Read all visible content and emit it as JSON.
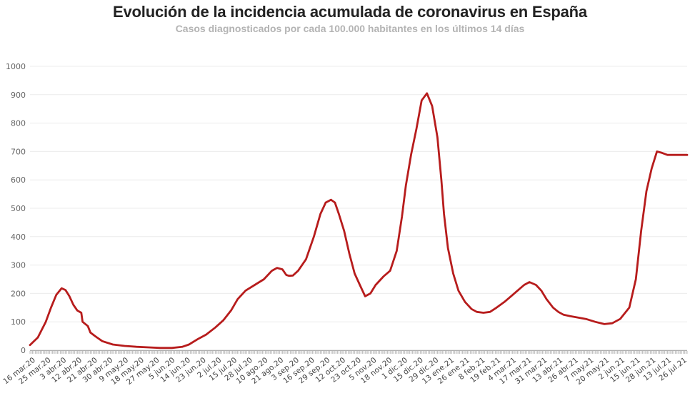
{
  "chart_data": {
    "type": "line",
    "title": "Evolución de la incidencia acumulada de coronavirus en España",
    "subtitle": "Casos diagnosticados por cada 100.000 habitantes en los últimos 14 días",
    "xlabel": "",
    "ylabel": "",
    "ylim": [
      0,
      1000
    ],
    "yticks": [
      "0",
      "100",
      "200",
      "300",
      "400",
      "500",
      "600",
      "700",
      "800",
      "900",
      "1000"
    ],
    "grid": true,
    "legend": "none",
    "line_color": "#b71c1c",
    "x_tick_labels": [
      "16 mar.20",
      "25 mar.20",
      "3 abr.20",
      "12 abr.20",
      "21 abr.20",
      "30 abr.20",
      "9 may.20",
      "18 may.20",
      "27 may.20",
      "5 jun.20",
      "14 jun.20",
      "23 jun.20",
      "2 jul.20",
      "15 jul.20",
      "28 jul.20",
      "10 ago.20",
      "21 ago.20",
      "3 sep.20",
      "16 sep.20",
      "29 sep.20",
      "12 oct.20",
      "23 oct.20",
      "5 nov.20",
      "18 nov.20",
      "1 dic.20",
      "15 dic.20",
      "29 dic.20",
      "13 ene.21",
      "26 ene.21",
      "8 feb.21",
      "19 feb.21",
      "4 mar.21",
      "17 mar.21",
      "31 mar.21",
      "13 abr.21",
      "26 abr.21",
      "7 may.21",
      "20 may.21",
      "2 jun.21",
      "15 jun.21",
      "28 jun.21",
      "13 jul.21",
      "26 jul.21"
    ],
    "series": [
      {
        "x": [
          "2020-03-16",
          "2020-03-22",
          "2020-03-28",
          "2020-04-01",
          "2020-04-05",
          "2020-04-09",
          "2020-04-12",
          "2020-04-15",
          "2020-04-18",
          "2020-04-21",
          "2020-04-24",
          "2020-04-25",
          "2020-04-29",
          "2020-05-01",
          "2020-05-05",
          "2020-05-10",
          "2020-05-18",
          "2020-05-27",
          "2020-06-05",
          "2020-06-14",
          "2020-06-23",
          "2020-07-02",
          "2020-07-10",
          "2020-07-15",
          "2020-07-22",
          "2020-07-28",
          "2020-08-04",
          "2020-08-10",
          "2020-08-16",
          "2020-08-21",
          "2020-08-27",
          "2020-09-03",
          "2020-09-10",
          "2020-09-16",
          "2020-09-20",
          "2020-09-24",
          "2020-09-27",
          "2020-09-29",
          "2020-10-02",
          "2020-10-06",
          "2020-10-12",
          "2020-10-18",
          "2020-10-23",
          "2020-10-27",
          "2020-10-31",
          "2020-11-03",
          "2020-11-06",
          "2020-11-10",
          "2020-11-14",
          "2020-11-18",
          "2020-11-22",
          "2020-11-26",
          "2020-11-30",
          "2020-12-04",
          "2020-12-10",
          "2020-12-15",
          "2020-12-20",
          "2020-12-24",
          "2020-12-27",
          "2020-12-31",
          "2021-01-04",
          "2021-01-08",
          "2021-01-12",
          "2021-01-16",
          "2021-01-20",
          "2021-01-23",
          "2021-01-25",
          "2021-01-28",
          "2021-02-01",
          "2021-02-05",
          "2021-02-10",
          "2021-02-15",
          "2021-02-19",
          "2021-02-24",
          "2021-03-01",
          "2021-03-06",
          "2021-03-12",
          "2021-03-17",
          "2021-03-22",
          "2021-03-27",
          "2021-03-31",
          "2021-04-05",
          "2021-04-09",
          "2021-04-13",
          "2021-04-18",
          "2021-04-22",
          "2021-04-26",
          "2021-05-01",
          "2021-05-07",
          "2021-05-13",
          "2021-05-20",
          "2021-05-27",
          "2021-06-02",
          "2021-06-08",
          "2021-06-15",
          "2021-06-20",
          "2021-06-24",
          "2021-06-28",
          "2021-07-02",
          "2021-07-06",
          "2021-07-10",
          "2021-07-14",
          "2021-07-18",
          "2021-07-22",
          "2021-07-26",
          "2021-07-29"
        ],
        "y": [
          18,
          45,
          100,
          150,
          195,
          218,
          212,
          190,
          160,
          140,
          132,
          100,
          85,
          62,
          48,
          32,
          20,
          15,
          12,
          10,
          8,
          8,
          12,
          20,
          40,
          55,
          80,
          105,
          140,
          180,
          210,
          230,
          250,
          280,
          290,
          285,
          265,
          262,
          263,
          280,
          320,
          400,
          480,
          520,
          530,
          520,
          480,
          420,
          340,
          270,
          230,
          190,
          200,
          230,
          260,
          280,
          350,
          470,
          580,
          690,
          780,
          880,
          905,
          860,
          750,
          600,
          480,
          360,
          270,
          210,
          170,
          145,
          135,
          132,
          135,
          150,
          170,
          190,
          210,
          230,
          240,
          230,
          210,
          180,
          150,
          135,
          125,
          120,
          115,
          110,
          100,
          92,
          95,
          110,
          150,
          250,
          420,
          560,
          640,
          700,
          695,
          688,
          688,
          688,
          688,
          688
        ]
      }
    ]
  }
}
